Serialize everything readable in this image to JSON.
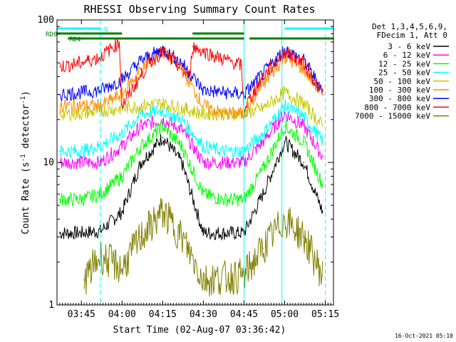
{
  "chart_data": {
    "type": "line",
    "title": "RHESSI Observing Summary Count Rates",
    "xlabel": "Start Time (02-Aug-07 03:36:42)",
    "ylabel": "Count Rate (s",
    "ylabel_sup": "-1",
    "ylabel_rest": " detector",
    "ylabel_sup2": "-1",
    "ylabel_close": ")",
    "y_scale": "log",
    "ylim": [
      1,
      100
    ],
    "xlim": [
      "03:36",
      "05:18"
    ],
    "x_ticks": [
      "03:45",
      "04:00",
      "04:15",
      "04:30",
      "04:45",
      "05:00",
      "05:15"
    ],
    "y_ticks": [
      "1",
      "10",
      "100"
    ],
    "legend_header": [
      "Det 1,3,4,5,6,9,",
      "FDecim 1, Att 0"
    ],
    "footer_date": "16-Oct-2021 05:10",
    "flags": [
      {
        "name": "N",
        "color": "#00ffff",
        "segments": [
          [
            "03:36",
            "03:52"
          ],
          [
            "05:00",
            "05:18"
          ]
        ]
      },
      {
        "name": "RD0",
        "color": "#008000",
        "segments": [
          [
            "03:36",
            "04:00"
          ],
          [
            "04:26",
            "04:45"
          ]
        ]
      },
      {
        "name": "RD4",
        "color": "#008000",
        "segments": [
          [
            "03:40",
            "04:00"
          ],
          [
            "04:00",
            "04:45"
          ],
          [
            "04:47",
            "05:18"
          ]
        ]
      }
    ],
    "markers": [
      {
        "time": "03:36",
        "color": "#00ffff",
        "style": "solid"
      },
      {
        "time": "03:52",
        "color": "#00ffff",
        "style": "dashed"
      },
      {
        "time": "04:45",
        "color": "#00ffff",
        "style": "solid"
      },
      {
        "time": "04:59",
        "color": "#00ffff",
        "style": "solid"
      },
      {
        "time": "05:15",
        "color": "#00ffff",
        "style": "dashed"
      }
    ],
    "series": [
      {
        "name": "3 - 6 keV",
        "color": "#000000",
        "x": [
          "03:37",
          "03:45",
          "03:52",
          "04:00",
          "04:07",
          "04:15",
          "04:22",
          "04:30",
          "04:37",
          "04:45",
          "04:52",
          "05:00",
          "05:07",
          "05:14"
        ],
        "y": [
          3.2,
          3.2,
          3.3,
          4.5,
          10,
          15,
          10,
          3.2,
          3.2,
          3.2,
          6,
          14,
          10,
          4.5
        ]
      },
      {
        "name": "6 - 12 keV",
        "color": "#ff00ff",
        "x": [
          "03:37",
          "03:45",
          "03:52",
          "04:00",
          "04:07",
          "04:15",
          "04:22",
          "04:30",
          "04:37",
          "04:45",
          "04:52",
          "05:00",
          "05:07",
          "05:14"
        ],
        "y": [
          10,
          10,
          10,
          13,
          18,
          20,
          17,
          10,
          10,
          10,
          14,
          22,
          18,
          11
        ]
      },
      {
        "name": "12 - 25 keV",
        "color": "#00ff00",
        "x": [
          "03:37",
          "03:45",
          "03:52",
          "04:00",
          "04:07",
          "04:15",
          "04:22",
          "04:30",
          "04:37",
          "04:45",
          "04:52",
          "05:00",
          "05:07",
          "05:14"
        ],
        "y": [
          5.5,
          5.5,
          6,
          8,
          13,
          18,
          13,
          6,
          5.5,
          5.5,
          9,
          18,
          14,
          7
        ]
      },
      {
        "name": "25 - 50 keV",
        "color": "#00ffff",
        "x": [
          "03:37",
          "03:45",
          "03:52",
          "04:00",
          "04:07",
          "04:15",
          "04:22",
          "04:30",
          "04:37",
          "04:45",
          "04:52",
          "05:00",
          "05:07",
          "05:14"
        ],
        "y": [
          12,
          12,
          13,
          16,
          22,
          23,
          20,
          13,
          12,
          12,
          16,
          25,
          21,
          14
        ]
      },
      {
        "name": "50 - 100 keV",
        "color": "#c8c800",
        "x": [
          "03:37",
          "03:45",
          "03:52",
          "04:00",
          "04:07",
          "04:15",
          "04:22",
          "04:30",
          "04:37",
          "04:45",
          "04:52",
          "05:00",
          "05:07",
          "05:14"
        ],
        "y": [
          22,
          22,
          23,
          24,
          25,
          26,
          24,
          22,
          22,
          22,
          24,
          31,
          26,
          18
        ]
      },
      {
        "name": "100 - 300 keV",
        "color": "#ff8c00",
        "x": [
          "03:37",
          "03:45",
          "03:52",
          "04:00",
          "04:07",
          "04:15",
          "04:22",
          "04:30",
          "04:37",
          "04:45",
          "04:52",
          "05:00",
          "05:07",
          "05:14"
        ],
        "y": [
          25,
          25,
          25,
          30,
          45,
          60,
          45,
          25,
          22,
          22,
          35,
          55,
          45,
          30
        ]
      },
      {
        "name": "300 - 800 keV",
        "color": "#0000ff",
        "x": [
          "03:37",
          "03:45",
          "03:52",
          "04:00",
          "04:07",
          "04:15",
          "04:22",
          "04:30",
          "04:37",
          "04:45",
          "04:52",
          "05:00",
          "05:07",
          "05:14"
        ],
        "y": [
          30,
          31,
          32,
          38,
          52,
          62,
          50,
          32,
          31,
          30,
          42,
          62,
          52,
          32
        ]
      },
      {
        "name": "800 - 7000 keV",
        "color": "#ff0000",
        "x": [
          "03:37",
          "03:45",
          "03:52",
          "03:59",
          "04:00",
          "04:10",
          "04:15",
          "04:25",
          "04:26",
          "04:35",
          "04:44",
          "04:45",
          "04:52",
          "05:00",
          "05:07",
          "05:14"
        ],
        "y": [
          47,
          50,
          55,
          70,
          25,
          50,
          60,
          40,
          65,
          55,
          48,
          24,
          40,
          60,
          50,
          30
        ]
      },
      {
        "name": "7000 - 15000 keV",
        "color": "#808000",
        "x": [
          "03:46",
          "03:52",
          "04:00",
          "04:07",
          "04:15",
          "04:22",
          "04:30",
          "04:45",
          "04:52",
          "05:00",
          "05:07",
          "05:14"
        ],
        "y": [
          1.5,
          2.2,
          1.8,
          3,
          4.5,
          3,
          1.5,
          1.6,
          2.5,
          4,
          3,
          1.6
        ]
      }
    ]
  }
}
